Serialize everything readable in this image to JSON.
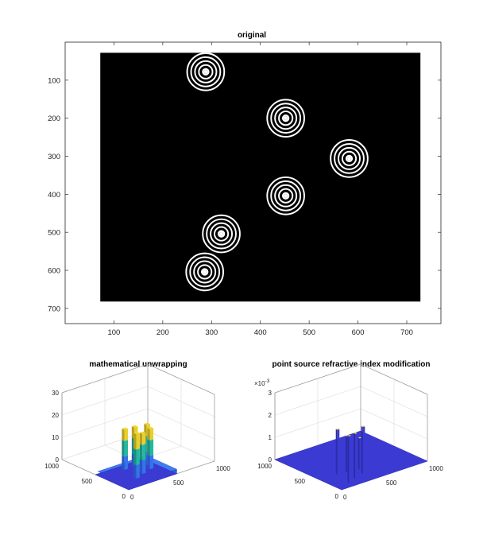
{
  "figure": {
    "background": "#ffffff",
    "accent_colors": {
      "ring": "#ffffff",
      "field": "#000000",
      "base_surface": "#3b3bd4",
      "mid_surface": "#23b8a0",
      "top_surface": "#f2d52b"
    }
  },
  "chart_data": [
    {
      "type": "heatmap",
      "title": "original",
      "xlabel": "",
      "ylabel": "",
      "xlim": [
        0,
        770
      ],
      "ylim": [
        740,
        0
      ],
      "x_ticks": [
        "100",
        "200",
        "300",
        "400",
        "500",
        "600",
        "700"
      ],
      "y_ticks": [
        "100",
        "200",
        "300",
        "400",
        "500",
        "600",
        "700"
      ],
      "image_extent": {
        "x": [
          72,
          728
        ],
        "y": [
          28,
          682
        ]
      },
      "colormap": "gray",
      "fringe_centers": [
        {
          "x": 288,
          "y": 78
        },
        {
          "x": 452,
          "y": 200
        },
        {
          "x": 582,
          "y": 306
        },
        {
          "x": 452,
          "y": 404
        },
        {
          "x": 320,
          "y": 504
        },
        {
          "x": 286,
          "y": 604
        }
      ],
      "fringe_ring_radii": [
        6,
        14,
        22,
        30,
        38
      ]
    },
    {
      "type": "surface",
      "title": "mathematical unwrapping",
      "xlim": [
        0,
        1000
      ],
      "ylim": [
        0,
        1000
      ],
      "zlim": [
        0,
        30
      ],
      "x_ticks": [
        "0",
        "500",
        "1000"
      ],
      "y_ticks": [
        "0",
        "500",
        "1000"
      ],
      "z_ticks": [
        "0",
        "10",
        "20",
        "30"
      ],
      "base_level": 0,
      "plateau_level": 2,
      "peaks": [
        {
          "x": 150,
          "y": 80,
          "z": 22
        },
        {
          "x": 260,
          "y": 130,
          "z": 20
        },
        {
          "x": 380,
          "y": 170,
          "z": 20
        },
        {
          "x": 420,
          "y": 270,
          "z": 20
        },
        {
          "x": 300,
          "y": 300,
          "z": 20
        },
        {
          "x": 200,
          "y": 320,
          "z": 20
        }
      ]
    },
    {
      "type": "surface",
      "title": "point source refractive index modification",
      "xlim": [
        0,
        1000
      ],
      "ylim": [
        0,
        1000
      ],
      "zlim": [
        0,
        0.003
      ],
      "z_exponent_label": "×10",
      "z_exponent_power": "-3",
      "x_ticks": [
        "0",
        "500",
        "1000"
      ],
      "y_ticks": [
        "0",
        "500",
        "1000"
      ],
      "z_ticks": [
        "0",
        "1",
        "2",
        "3"
      ],
      "base_level": 0,
      "peaks": [
        {
          "x": 150,
          "y": 80,
          "z": 0.0021
        },
        {
          "x": 260,
          "y": 130,
          "z": 0.002
        },
        {
          "x": 380,
          "y": 170,
          "z": 0.0021
        },
        {
          "x": 420,
          "y": 270,
          "z": 0.0014
        },
        {
          "x": 300,
          "y": 300,
          "z": 0.0016
        },
        {
          "x": 200,
          "y": 320,
          "z": 0.002
        }
      ]
    }
  ]
}
